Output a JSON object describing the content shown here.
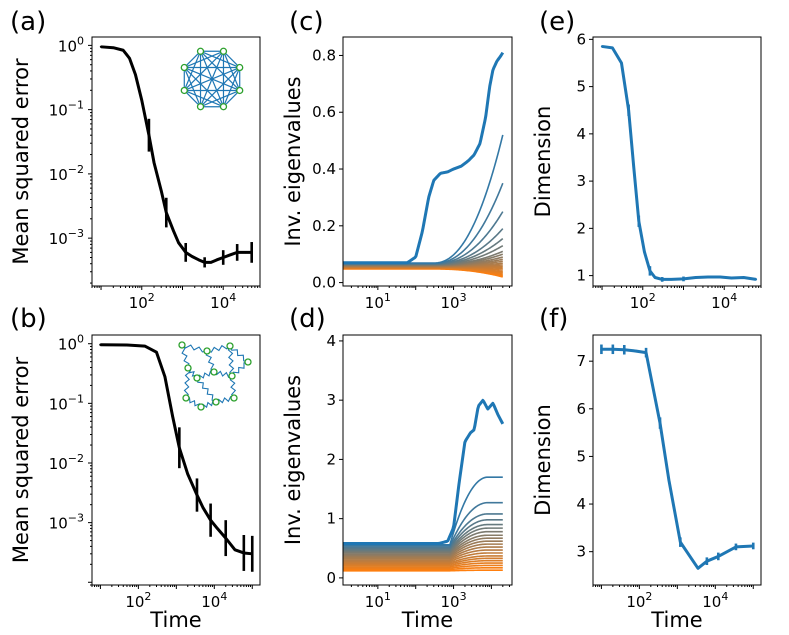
{
  "colors": {
    "black": "#000000",
    "blue": "#1f77b4",
    "orange": "#ff7f0e",
    "node_fill": "#ffffff",
    "node_stroke": "#2ca02c"
  },
  "chart_data": [
    {
      "id": "a",
      "panel_label": "(a)",
      "type": "line",
      "y_scale": "log",
      "x_scale": "log",
      "xlabel": "",
      "ylabel": "Mean squared error",
      "xlim": [
        6,
        80000
      ],
      "ylim": [
        0.00018,
        1.35
      ],
      "xticks": [
        {
          "base": "10",
          "exp": "2",
          "value": 100
        },
        {
          "base": "10",
          "exp": "4",
          "value": 10000
        }
      ],
      "yticks": [
        {
          "base": "10",
          "exp": "0",
          "value": 1
        },
        {
          "base": "10",
          "exp": "−1",
          "value": 0.1
        },
        {
          "base": "10",
          "exp": "−2",
          "value": 0.01
        },
        {
          "base": "10",
          "exp": "−3",
          "value": 0.001
        }
      ],
      "inset": "complete-graph",
      "series": [
        {
          "color": "black",
          "x": [
            10,
            20,
            35,
            50,
            70,
            100,
            150,
            200,
            300,
            400,
            600,
            800,
            1200,
            1700,
            2500,
            3500,
            5000,
            7000,
            10000,
            15000,
            22000,
            35000,
            50000
          ],
          "y": [
            0.95,
            0.92,
            0.84,
            0.63,
            0.35,
            0.14,
            0.04,
            0.015,
            0.0055,
            0.0025,
            0.0013,
            0.00085,
            0.0006,
            0.00052,
            0.00046,
            0.00042,
            0.00042,
            0.00046,
            0.0005,
            0.00055,
            0.0006,
            0.0006,
            0.0006
          ],
          "err_x": [
            150,
            400,
            1200,
            3500,
            10000,
            22000,
            50000
          ],
          "err_y": [
            0.04,
            0.0025,
            0.0006,
            0.00042,
            0.0005,
            0.0006,
            0.0006
          ],
          "err_f": [
            1.8,
            1.7,
            1.4,
            1.2,
            1.3,
            1.35,
            1.45
          ]
        }
      ]
    },
    {
      "id": "b",
      "panel_label": "(b)",
      "type": "line",
      "y_scale": "log",
      "x_scale": "log",
      "xlabel": "Time",
      "ylabel": "Mean squared error",
      "xlim": [
        6,
        160000
      ],
      "ylim": [
        9e-05,
        1.4
      ],
      "xticks": [
        {
          "base": "10",
          "exp": "2",
          "value": 100
        },
        {
          "base": "10",
          "exp": "4",
          "value": 10000
        }
      ],
      "yticks": [
        {
          "base": "10",
          "exp": "0",
          "value": 1
        },
        {
          "base": "10",
          "exp": "−1",
          "value": 0.1
        },
        {
          "base": "10",
          "exp": "−2",
          "value": 0.01
        },
        {
          "base": "10",
          "exp": "−3",
          "value": 0.001
        }
      ],
      "inset": "ring-graph",
      "series": [
        {
          "color": "black",
          "x": [
            10,
            50,
            150,
            300,
            500,
            800,
            1200,
            2000,
            3500,
            5000,
            8000,
            12000,
            20000,
            35000,
            60000,
            100000
          ],
          "y": [
            0.96,
            0.95,
            0.91,
            0.72,
            0.28,
            0.06,
            0.018,
            0.0065,
            0.0029,
            0.0018,
            0.0011,
            0.0008,
            0.00055,
            0.00035,
            0.00031,
            0.0003
          ],
          "err_x": [
            1200,
            3500,
            8000,
            20000,
            60000,
            100000
          ],
          "err_y": [
            0.018,
            0.0029,
            0.0011,
            0.00055,
            0.00031,
            0.0003
          ],
          "err_f": [
            2.2,
            1.9,
            1.9,
            2.0,
            2.0,
            2.0
          ]
        }
      ]
    },
    {
      "id": "c",
      "panel_label": "(c)",
      "type": "line",
      "y_scale": "linear",
      "x_scale": "log",
      "xlabel": "",
      "ylabel": "Inv. eigenvalues",
      "xlim": [
        1.2,
        35000
      ],
      "ylim": [
        -0.012,
        0.865
      ],
      "xticks": [
        {
          "base": "10",
          "exp": "1",
          "value": 10
        },
        {
          "base": "10",
          "exp": "3",
          "value": 1000
        }
      ],
      "yticks": [
        {
          "text": "0.0",
          "value": 0
        },
        {
          "text": "0.2",
          "value": 0.2
        },
        {
          "text": "0.4",
          "value": 0.4
        },
        {
          "text": "0.6",
          "value": 0.6
        },
        {
          "text": "0.8",
          "value": 0.8
        }
      ],
      "family": {
        "n_lines": 22,
        "x_end": 20000,
        "y_start_top": 0.07,
        "y_start_bottom": 0.048,
        "top_x": [
          1.2,
          60,
          100,
          150,
          220,
          300,
          450,
          700,
          1000,
          1600,
          2500,
          3500,
          5000,
          7000,
          9000,
          11000,
          14000,
          18000,
          20000
        ],
        "top_y": [
          0.07,
          0.07,
          0.09,
          0.18,
          0.3,
          0.36,
          0.385,
          0.39,
          0.4,
          0.41,
          0.43,
          0.45,
          0.49,
          0.58,
          0.69,
          0.75,
          0.78,
          0.8,
          0.81
        ],
        "end_values": [
          0.81,
          0.52,
          0.35,
          0.25,
          0.19,
          0.155,
          0.13,
          0.11,
          0.1,
          0.09,
          0.082,
          0.075,
          0.068,
          0.062,
          0.056,
          0.05,
          0.044,
          0.038,
          0.033,
          0.028,
          0.024,
          0.02
        ]
      }
    },
    {
      "id": "d",
      "panel_label": "(d)",
      "type": "line",
      "y_scale": "linear",
      "x_scale": "log",
      "xlabel": "Time",
      "ylabel": "Inv. eigenvalues",
      "xlim": [
        1.2,
        35000
      ],
      "ylim": [
        -0.12,
        4.1
      ],
      "xticks": [
        {
          "base": "10",
          "exp": "1",
          "value": 10
        },
        {
          "base": "10",
          "exp": "3",
          "value": 1000
        }
      ],
      "yticks": [
        {
          "text": "0",
          "value": 0
        },
        {
          "text": "1",
          "value": 1
        },
        {
          "text": "2",
          "value": 2
        },
        {
          "text": "3",
          "value": 3
        },
        {
          "text": "4",
          "value": 4
        }
      ],
      "family": {
        "n_lines": 22,
        "x_end": 20000,
        "y_start_top": 0.58,
        "y_start_bottom": 0.12,
        "top_x": [
          1.2,
          400,
          700,
          1000,
          1400,
          2000,
          2800,
          3500,
          4500,
          6000,
          8000,
          11000,
          15000,
          20000
        ],
        "top_y": [
          0.58,
          0.58,
          0.62,
          0.85,
          1.6,
          2.3,
          2.45,
          2.5,
          2.9,
          3.0,
          2.85,
          2.95,
          2.75,
          2.6
        ],
        "end_values": [
          2.6,
          1.7,
          1.27,
          1.08,
          0.98,
          0.9,
          0.84,
          0.78,
          0.72,
          0.67,
          0.62,
          0.57,
          0.52,
          0.47,
          0.42,
          0.37,
          0.33,
          0.29,
          0.25,
          0.21,
          0.17,
          0.13
        ]
      }
    },
    {
      "id": "e",
      "panel_label": "(e)",
      "type": "line",
      "y_scale": "linear",
      "x_scale": "log",
      "xlabel": "",
      "ylabel": "Dimension",
      "xlim": [
        6,
        80000
      ],
      "ylim": [
        0.78,
        6.05
      ],
      "xticks": [
        {
          "base": "10",
          "exp": "2",
          "value": 100
        },
        {
          "base": "10",
          "exp": "4",
          "value": 10000
        }
      ],
      "yticks": [
        {
          "text": "1",
          "value": 1
        },
        {
          "text": "2",
          "value": 2
        },
        {
          "text": "3",
          "value": 3
        },
        {
          "text": "4",
          "value": 4
        },
        {
          "text": "5",
          "value": 5
        },
        {
          "text": "6",
          "value": 6
        }
      ],
      "series": [
        {
          "color": "blue",
          "x": [
            10,
            18,
            30,
            45,
            60,
            80,
            110,
            150,
            200,
            300,
            500,
            1000,
            2000,
            4000,
            8000,
            15000,
            30000,
            60000
          ],
          "y": [
            5.85,
            5.82,
            5.5,
            4.5,
            3.3,
            2.15,
            1.5,
            1.1,
            0.96,
            0.92,
            0.92,
            0.93,
            0.96,
            0.97,
            0.97,
            0.95,
            0.96,
            0.92
          ],
          "err_x": [
            45,
            80,
            150,
            300,
            1000
          ],
          "err_y": [
            4.5,
            2.15,
            1.1,
            0.92,
            0.93
          ],
          "err_d": [
            0.12,
            0.12,
            0.1,
            0.05,
            0.05
          ]
        }
      ]
    },
    {
      "id": "f",
      "panel_label": "(f)",
      "type": "line",
      "y_scale": "linear",
      "x_scale": "log",
      "xlabel": "Time",
      "ylabel": "Dimension",
      "xlim": [
        6,
        160000
      ],
      "ylim": [
        2.3,
        7.55
      ],
      "xticks": [
        {
          "base": "10",
          "exp": "2",
          "value": 100
        },
        {
          "base": "10",
          "exp": "4",
          "value": 10000
        }
      ],
      "yticks": [
        {
          "text": "3",
          "value": 3
        },
        {
          "text": "4",
          "value": 4
        },
        {
          "text": "5",
          "value": 5
        },
        {
          "text": "6",
          "value": 6
        },
        {
          "text": "7",
          "value": 7
        }
      ],
      "series": [
        {
          "color": "blue",
          "x": [
            10,
            20,
            40,
            70,
            150,
            350,
            600,
            1200,
            3500,
            6000,
            12000,
            35000,
            100000
          ],
          "y": [
            7.25,
            7.25,
            7.24,
            7.22,
            7.18,
            5.7,
            4.5,
            3.2,
            2.65,
            2.8,
            2.9,
            3.1,
            3.12
          ],
          "err_x": [
            10,
            20,
            40,
            150,
            350,
            1200,
            6000,
            12000,
            35000,
            100000
          ],
          "err_y": [
            7.25,
            7.25,
            7.24,
            7.18,
            5.7,
            3.2,
            2.8,
            2.9,
            3.1,
            3.12
          ],
          "err_d": [
            0.1,
            0.1,
            0.1,
            0.1,
            0.12,
            0.1,
            0.08,
            0.08,
            0.07,
            0.07
          ]
        }
      ]
    }
  ]
}
